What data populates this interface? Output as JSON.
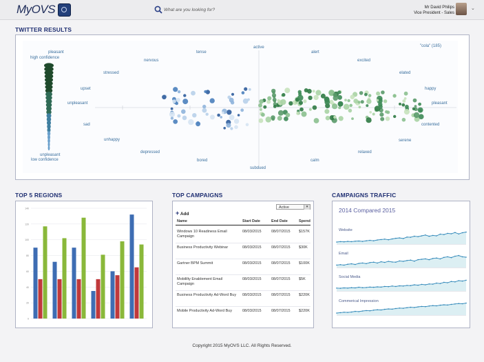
{
  "app": {
    "logo_text": "MyOVS"
  },
  "search": {
    "placeholder": "What are you looking for?"
  },
  "user": {
    "name": "Mr David Philips",
    "role": "Vice President - Sales"
  },
  "twitter": {
    "title": "TWITTER RESULTS",
    "query": "\"cola\" (185)",
    "legend_top_1": "pleasant",
    "legend_top_2": "high confidence",
    "legend_bottom_1": "unpleasant",
    "legend_bottom_2": "low confidence",
    "sentiments": [
      "active",
      "alert",
      "excited",
      "elated",
      "happy",
      "pleasant",
      "contented",
      "serene",
      "relaxed",
      "calm",
      "subdued",
      "bored",
      "depressed",
      "unhappy",
      "sad",
      "unpleasant",
      "upset",
      "stressed",
      "nervous",
      "tense"
    ]
  },
  "regions": {
    "title": "TOP 5 REGIONS",
    "y_ticks": [
      "140",
      "120",
      "100",
      "80",
      "60",
      "40",
      "20",
      "0"
    ],
    "categories": [
      "",
      "",
      "",
      "",
      "",
      ""
    ],
    "series_colors": [
      "#3e6db3",
      "#c0393b",
      "#8ab83a"
    ]
  },
  "campaigns": {
    "title": "TOP CAMPAIGNS",
    "filter_value": "Active",
    "add_label": "Add",
    "columns": [
      "Name",
      "Start Date",
      "End Date",
      "Spend"
    ],
    "rows": [
      {
        "name": "Windows 10 Readiness Email Campaign",
        "start": "08/03/2015",
        "end": "08/07/2015",
        "spend": "$157K"
      },
      {
        "name": "Business Productivity Webinar",
        "start": "08/03/2015",
        "end": "08/07/2015",
        "spend": "$30K"
      },
      {
        "name": "Gartner BPM Summit",
        "start": "08/03/2015",
        "end": "08/07/2015",
        "spend": "$100K"
      },
      {
        "name": "Mobililty Enablement Email Campaign",
        "start": "08/03/2015",
        "end": "08/07/2015",
        "spend": "$5K"
      },
      {
        "name": "Business Productivity Ad-Word Buy",
        "start": "08/03/2015",
        "end": "08/07/2015",
        "spend": "$220K"
      },
      {
        "name": "Mobile Productivity Ad-Word Buy",
        "start": "08/03/2015",
        "end": "08/07/2015",
        "spend": "$220K"
      }
    ]
  },
  "traffic": {
    "title": "CAMPAIGNS TRAFFIC",
    "subtitle": "2014 Compared 2015",
    "channels": [
      "Website",
      "Email",
      "Social Media",
      "Commerical Impression"
    ]
  },
  "footer": {
    "text": "Copyright 2015 MyOVS LLC. All Rights Reserved."
  },
  "chart_data": [
    {
      "type": "bar",
      "title": "TOP 5 REGIONS",
      "categories": [
        "",
        "",
        "",
        "",
        "",
        ""
      ],
      "ylim": [
        0,
        140
      ],
      "series": [
        {
          "values": [
            90,
            72,
            90,
            35,
            60,
            132
          ]
        },
        {
          "values": [
            50,
            50,
            50,
            50,
            55,
            65
          ]
        },
        {
          "values": [
            117,
            102,
            128,
            81,
            98,
            94
          ]
        }
      ]
    }
  ]
}
